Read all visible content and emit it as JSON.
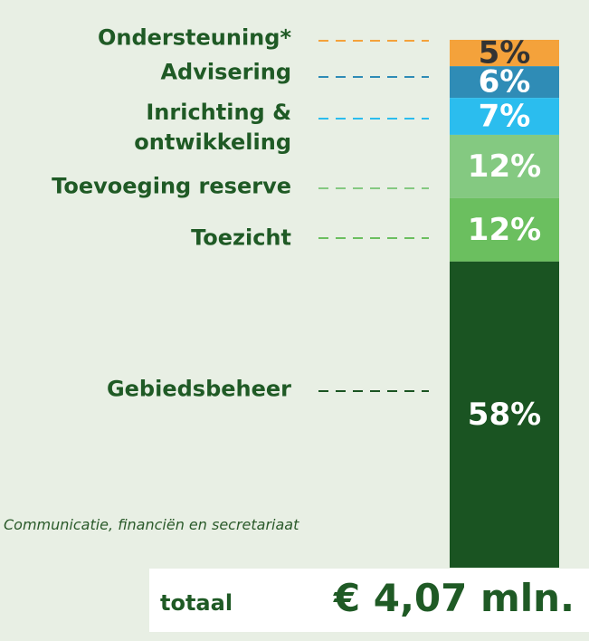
{
  "chart_data": {
    "type": "stacked-bar",
    "categories": [
      "Ondersteuning*",
      "Advisering",
      "Inrichting &\nontwikkeling",
      "Toevoeging reserve",
      "Toezicht",
      "Gebiedsbeheer"
    ],
    "values": [
      5,
      6,
      7,
      12,
      12,
      58
    ],
    "value_labels": [
      "5%",
      "6%",
      "7%",
      "12%",
      "12%",
      "58%"
    ],
    "colors": [
      "#f4a23b",
      "#2f8cb6",
      "#2bbdee",
      "#84c981",
      "#6bbf5f",
      "#1a5422"
    ],
    "value_label_colors": [
      "#333333",
      "#ffffff",
      "#ffffff",
      "#ffffff",
      "#ffffff",
      "#ffffff"
    ],
    "ylim": [
      0,
      100
    ],
    "annotation": "Communicatie, financiën en secretariaat",
    "total_label": "totaal",
    "total_value": "€ 4,07 mln."
  }
}
